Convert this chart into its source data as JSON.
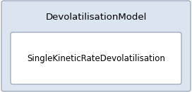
{
  "outer_label": "DevolatilisationModel",
  "inner_label": "SingleKineticRateDevolatilisation",
  "outer_bg": "#dce4f0",
  "inner_bg": "#ffffff",
  "outer_edge": "#a0aec0",
  "inner_edge": "#a0aec0",
  "fig_bg": "#ffffff",
  "fig_width": 2.72,
  "fig_height": 1.31,
  "dpi": 100,
  "outer_label_fontsize": 9.5,
  "inner_label_fontsize": 8.5
}
